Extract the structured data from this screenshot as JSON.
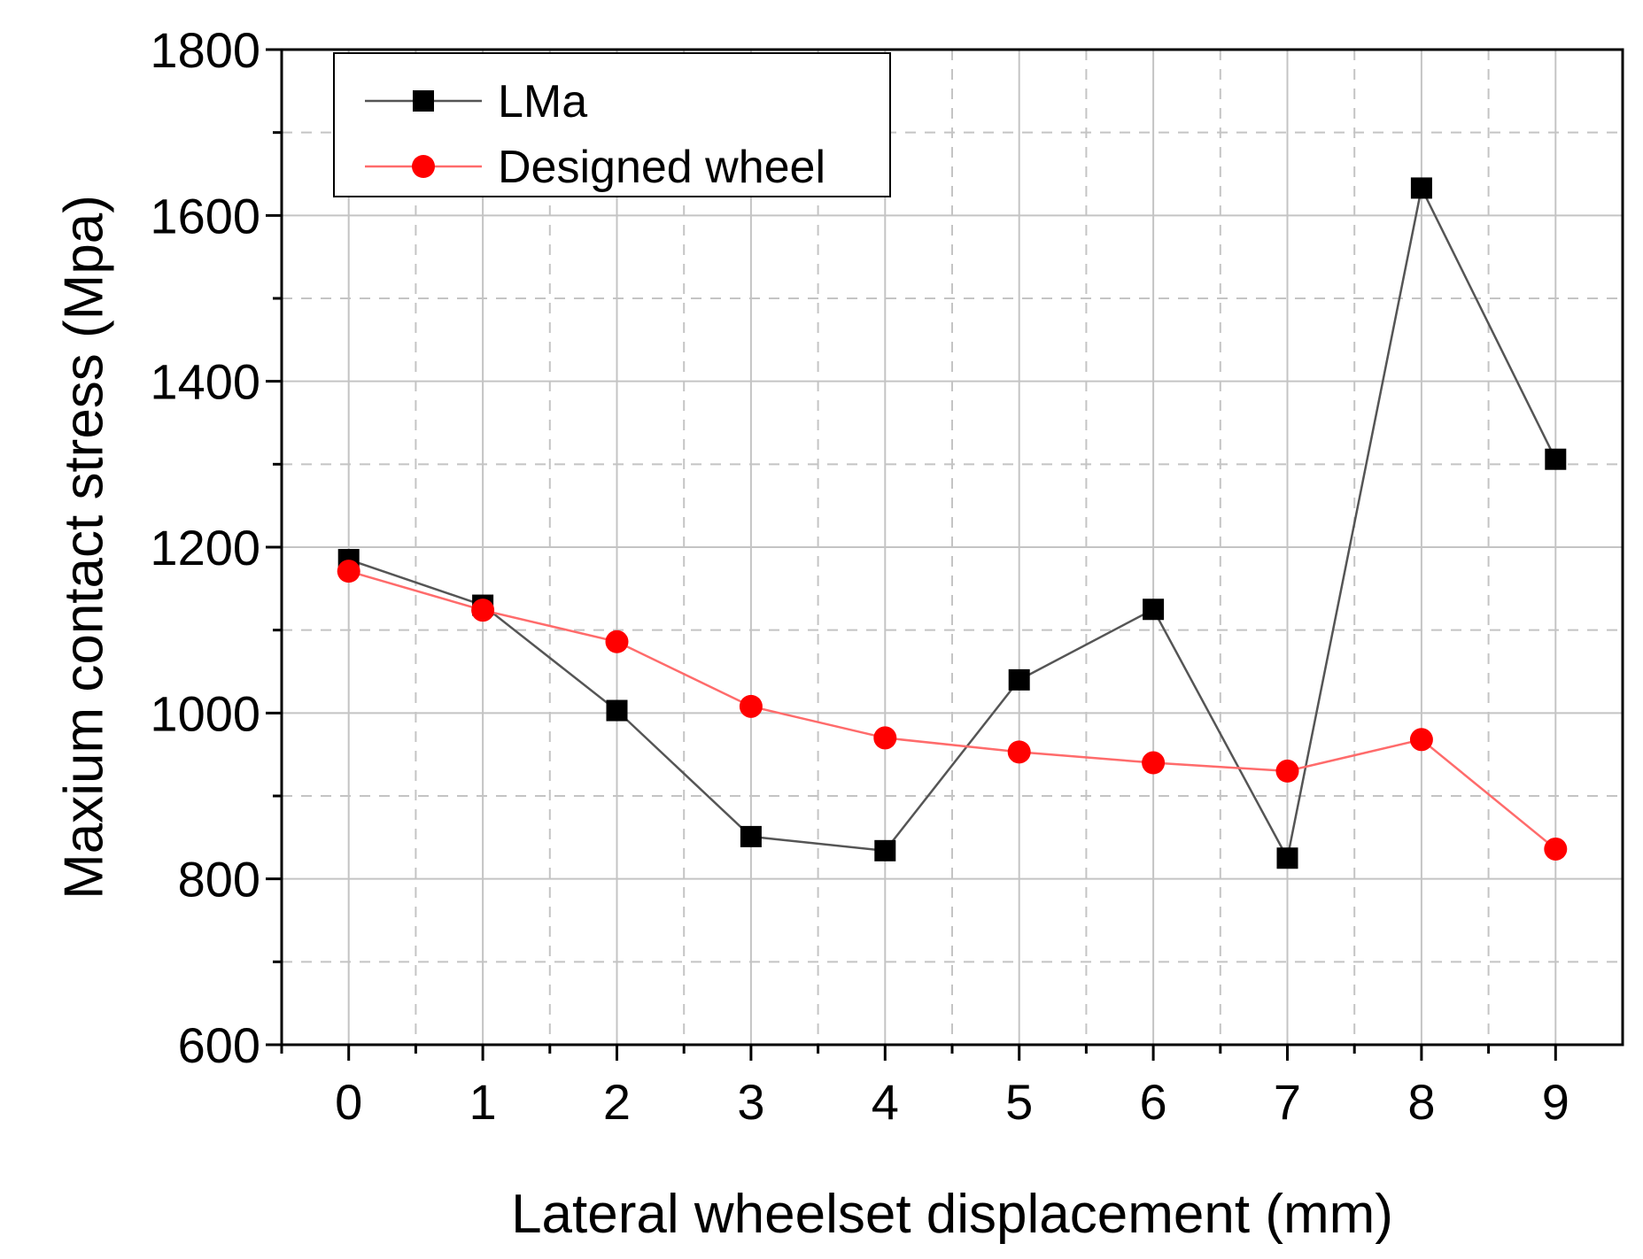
{
  "chart_data": {
    "type": "line",
    "title": "",
    "xlabel": "Lateral wheelset displacement (mm)",
    "ylabel": "Maxium contact stress (Mpa)",
    "x": [
      0,
      1,
      2,
      3,
      4,
      5,
      6,
      7,
      8,
      9
    ],
    "xlim": [
      -0.5,
      9.5
    ],
    "ylim": [
      600,
      1800
    ],
    "xticks": [
      0,
      1,
      2,
      3,
      4,
      5,
      6,
      7,
      8,
      9
    ],
    "xtick_labels": [
      "0",
      "1",
      "2",
      "3",
      "4",
      "5",
      "6",
      "7",
      "8",
      "9"
    ],
    "yticks": [
      600,
      800,
      1000,
      1200,
      1400,
      1600,
      1800
    ],
    "ytick_labels": [
      "600",
      "800",
      "1000",
      "1200",
      "1400",
      "1600",
      "1800"
    ],
    "grid": true,
    "legend_position": "top-left",
    "series": [
      {
        "name": "LMa",
        "color": "#000000",
        "line_color": "#555555",
        "marker": "square",
        "values": [
          1185,
          1130,
          1003,
          851,
          834,
          1040,
          1125,
          825,
          1633,
          1306
        ]
      },
      {
        "name": "Designed wheel",
        "color": "#ff0000",
        "line_color": "#ff6b6b",
        "marker": "circle",
        "values": [
          1171,
          1124,
          1086,
          1008,
          970,
          953,
          940,
          930,
          968,
          836
        ]
      }
    ]
  }
}
